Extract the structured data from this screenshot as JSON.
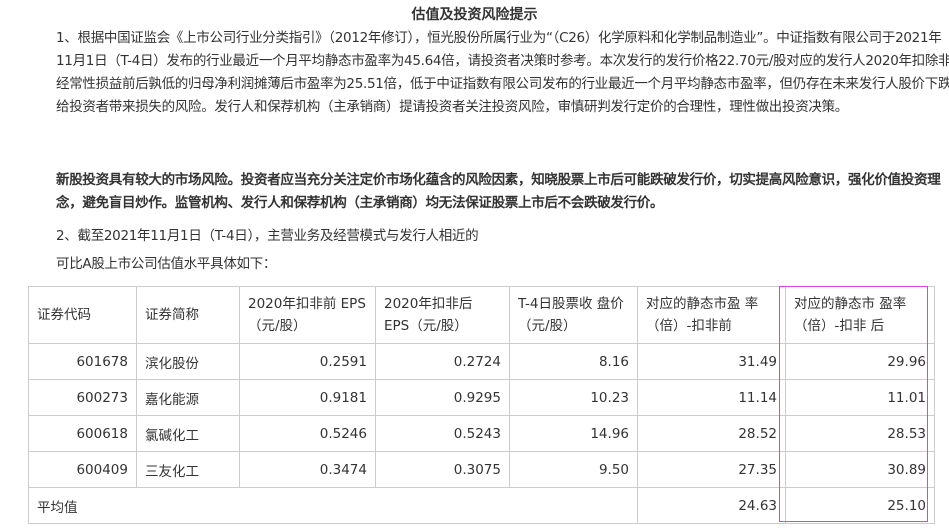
{
  "title": "估值及投资风险提示",
  "p1": "1、根据中国证监会《上市公司行业分类指引》（2012年修订），恒光股份所属行业为“（C26）化学原料和化学制品制造业”。中证指数有限公司于2021年11月1日（T-4日）发布的行业最近一个月平均静态市盈率为45.64倍，请投资者决策时参考。本次发行的发行价格22.70元/股对应的发行人2020年扣除非经常性损益前后孰低的归母净利润摊薄后市盈率为25.51倍，低于中证指数有限公司发布的行业最近一个月平均静态市盈率，但仍存在未来发行人股价下跌给投资者带来损失的风险。发行人和保荐机构（主承销商）提请投资者关注投资风险，审慎研判发行定价的合理性，理性做出投资决策。",
  "p2": "新股投资具有较大的市场风险。投资者应当充分关注定价市场化蕴含的风险因素，知晓股票上市后可能跌破发行价，切实提高风险意识，强化价值投资理念，避免盲目炒作。监管机构、发行人和保荐机构（主承销商）均无法保证股票上市后不会跌破发行价。",
  "p3": "2、截至2021年11月1日（T-4日），主营业务及经营模式与发行人相近的",
  "p4": "可比A股上市公司估值水平具体如下：",
  "table": {
    "headers": [
      "证券代码",
      "证券简称",
      "2020年扣非前 EPS（元/股）",
      "2020年扣非后 EPS（元/股）",
      "T-4日股票收 盘价（元/股）",
      "对应的静态市盈 率（倍）-扣非前",
      "对应的静态市 盈率（倍）-扣非 后"
    ],
    "rows": [
      [
        "601678",
        "滨化股份",
        "0.2591",
        "0.2724",
        "8.16",
        "31.49",
        "29.96"
      ],
      [
        "600273",
        "嘉化能源",
        "0.9181",
        "0.9295",
        "10.23",
        "11.14",
        "11.01"
      ],
      [
        "600618",
        "氯碱化工",
        "0.5246",
        "0.5243",
        "14.96",
        "28.52",
        "28.53"
      ],
      [
        "600409",
        "三友化工",
        "0.3474",
        "0.3075",
        "9.50",
        "27.35",
        "30.89"
      ]
    ],
    "avg": {
      "label": "平均值",
      "pe_before": "24.63",
      "pe_after": "25.10"
    }
  },
  "highlight_color": "#e040e0"
}
